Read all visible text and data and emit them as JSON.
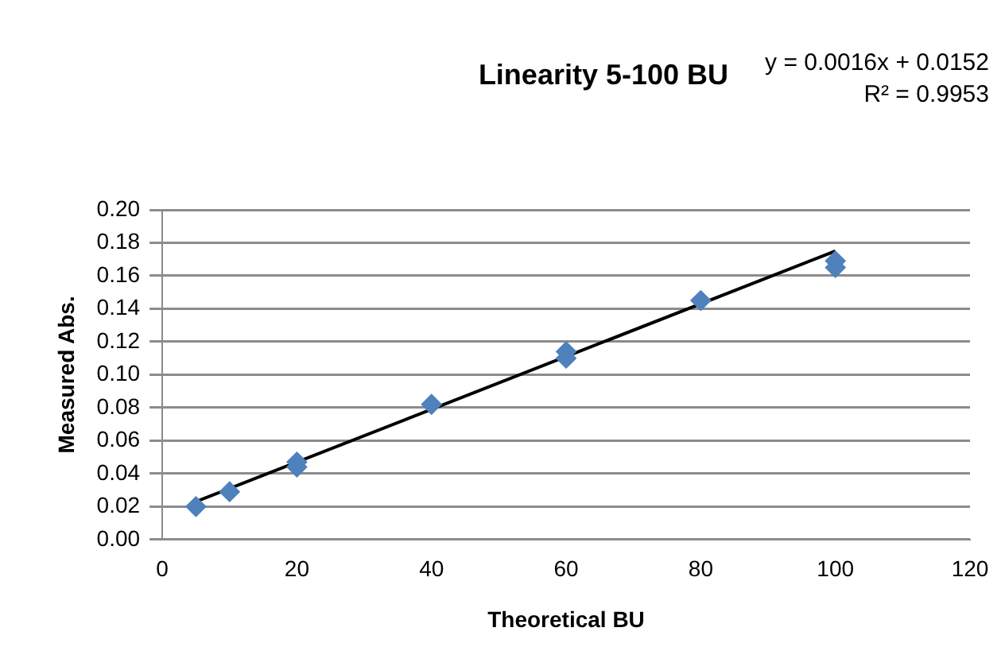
{
  "chart_data": {
    "type": "scatter",
    "title": "Linearity 5-100 BU",
    "xlabel": "Theoretical BU",
    "ylabel": "Measured Abs.",
    "annotations": [
      "y = 0.0016x + 0.0152",
      "R² = 0.9953"
    ],
    "series": [
      {
        "type": "scatter",
        "color": "#4f81bd",
        "marker": "diamond",
        "x": [
          5,
          10,
          20,
          20,
          40,
          60,
          60,
          80,
          100,
          100
        ],
        "values": [
          0.02,
          0.029,
          0.047,
          0.044,
          0.082,
          0.114,
          0.11,
          0.145,
          0.169,
          0.165
        ]
      },
      {
        "type": "line",
        "color": "#000000",
        "marker": "none",
        "line_style": "solid",
        "x": [
          5,
          100
        ],
        "values": [
          0.023,
          0.175
        ]
      }
    ],
    "xlim": [
      0,
      120
    ],
    "xticks": [
      0,
      20,
      40,
      60,
      80,
      100,
      120
    ],
    "ylim": [
      0,
      0.2
    ],
    "yticks": [
      {
        "value": 0,
        "label": "0.00"
      },
      {
        "value": 0.02,
        "label": "0.02"
      },
      {
        "value": 0.04,
        "label": "0.04"
      },
      {
        "value": 0.06,
        "label": "0.06"
      },
      {
        "value": 0.08,
        "label": "0.08"
      },
      {
        "value": 0.1,
        "label": "0.10"
      },
      {
        "value": 0.12,
        "label": "0.12"
      },
      {
        "value": 0.14,
        "label": "0.14"
      },
      {
        "value": 0.16,
        "label": "0.16"
      },
      {
        "value": 0.18,
        "label": "0.18"
      },
      {
        "value": 0.2,
        "label": "0.20"
      }
    ],
    "grid": "y",
    "legend": false
  }
}
